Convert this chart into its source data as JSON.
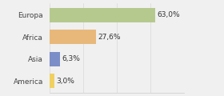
{
  "categories": [
    "Europa",
    "Africa",
    "Asia",
    "America"
  ],
  "values": [
    63.0,
    27.6,
    6.3,
    3.0
  ],
  "bar_colors": [
    "#b5c98e",
    "#e8b87a",
    "#7b8ec8",
    "#f0d060"
  ],
  "labels": [
    "63,0%",
    "27,6%",
    "6,3%",
    "3,0%"
  ],
  "background_color": "#f0f0f0",
  "xlim": [
    0,
    80
  ],
  "bar_height": 0.65,
  "label_fontsize": 6.5,
  "tick_fontsize": 6.5
}
